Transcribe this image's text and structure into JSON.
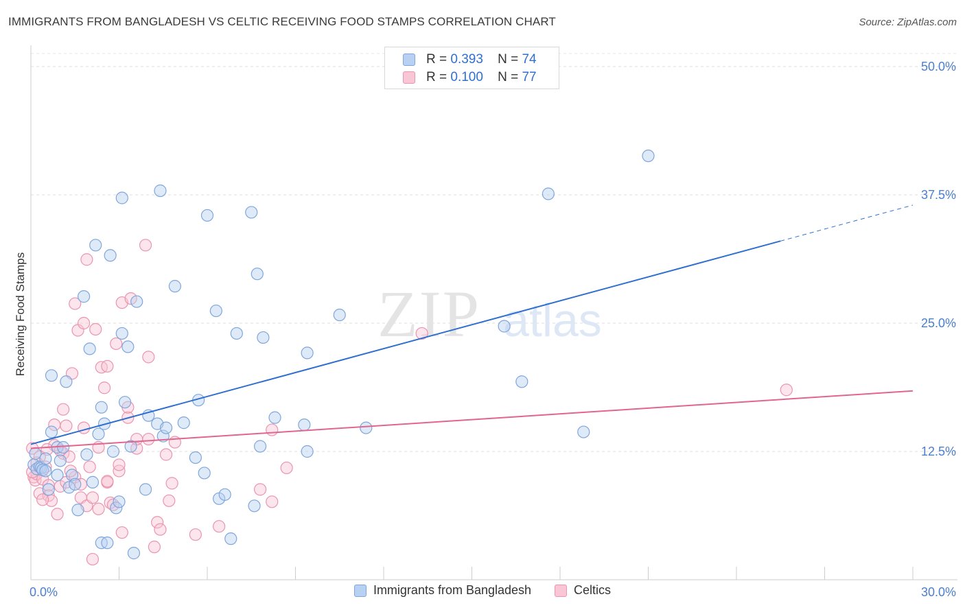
{
  "title": "IMMIGRANTS FROM BANGLADESH VS CELTIC RECEIVING FOOD STAMPS CORRELATION CHART",
  "source": "Source: ZipAtlas.com",
  "watermark": {
    "zip": "ZIP",
    "atlas": "atlas"
  },
  "stats_legend": [
    {
      "r_label": "R =",
      "r_value": "0.393",
      "n_label": "N =",
      "n_value": "74",
      "color": "#7ea6dc"
    },
    {
      "r_label": "R =",
      "r_value": "0.100",
      "n_label": "N =",
      "n_value": "77",
      "color": "#eb94ae"
    }
  ],
  "legend": [
    {
      "label": "Immigrants from Bangladesh",
      "color": "#7ea6dc"
    },
    {
      "label": "Celtics",
      "color": "#eb94ae"
    }
  ],
  "chart_data": {
    "type": "scatter",
    "title": "IMMIGRANTS FROM BANGLADESH VS CELTIC RECEIVING FOOD STAMPS CORRELATION CHART",
    "xlabel": "",
    "ylabel": "Receiving Food Stamps",
    "xlim": [
      0,
      30
    ],
    "ylim": [
      0,
      50
    ],
    "x_tick_labels": [
      "0.0%",
      "30.0%"
    ],
    "y_tick_labels": [
      "12.5%",
      "25.0%",
      "37.5%",
      "50.0%"
    ],
    "y_ticks": [
      12.5,
      25.0,
      37.5,
      50.0
    ],
    "grid": true,
    "legend_position": "bottom",
    "series": [
      {
        "name": "Immigrants from Bangladesh",
        "color": "#7ea6dc",
        "trend_color": "#2f6fd0",
        "trend": {
          "x0": 0,
          "y0": 13.2,
          "x1": 25.5,
          "y1": 33.0,
          "dashed_to_x": 30,
          "dashed_to_y": 36.5
        },
        "points": [
          [
            0.1,
            11.2
          ],
          [
            0.2,
            10.8
          ],
          [
            0.3,
            11.0
          ],
          [
            0.35,
            10.9
          ],
          [
            0.4,
            10.7
          ],
          [
            0.5,
            11.8
          ],
          [
            0.5,
            10.6
          ],
          [
            0.6,
            8.8
          ],
          [
            0.7,
            14.4
          ],
          [
            0.7,
            19.9
          ],
          [
            0.9,
            10.2
          ],
          [
            0.9,
            12.9
          ],
          [
            1.0,
            11.6
          ],
          [
            1.1,
            12.9
          ],
          [
            1.2,
            19.3
          ],
          [
            1.3,
            9.0
          ],
          [
            1.4,
            10.2
          ],
          [
            1.5,
            9.3
          ],
          [
            1.6,
            6.8
          ],
          [
            1.8,
            27.6
          ],
          [
            1.9,
            12.2
          ],
          [
            2.0,
            22.5
          ],
          [
            2.1,
            9.5
          ],
          [
            2.2,
            32.6
          ],
          [
            2.3,
            14.2
          ],
          [
            2.4,
            16.8
          ],
          [
            2.4,
            3.6
          ],
          [
            2.5,
            15.2
          ],
          [
            2.6,
            3.6
          ],
          [
            2.7,
            31.6
          ],
          [
            2.8,
            12.5
          ],
          [
            2.9,
            7.0
          ],
          [
            3.0,
            7.6
          ],
          [
            3.1,
            37.2
          ],
          [
            3.1,
            24.0
          ],
          [
            3.2,
            17.3
          ],
          [
            3.3,
            22.7
          ],
          [
            3.4,
            13.0
          ],
          [
            3.5,
            2.6
          ],
          [
            3.6,
            27.1
          ],
          [
            3.9,
            8.8
          ],
          [
            4.0,
            16.0
          ],
          [
            4.3,
            15.2
          ],
          [
            4.4,
            37.9
          ],
          [
            4.5,
            14.0
          ],
          [
            4.6,
            14.8
          ],
          [
            4.9,
            28.6
          ],
          [
            5.2,
            15.3
          ],
          [
            5.6,
            11.9
          ],
          [
            5.7,
            17.5
          ],
          [
            5.9,
            10.4
          ],
          [
            6.0,
            35.5
          ],
          [
            6.3,
            26.2
          ],
          [
            6.4,
            7.9
          ],
          [
            6.6,
            8.3
          ],
          [
            6.8,
            4.0
          ],
          [
            7.0,
            24.0
          ],
          [
            7.5,
            35.8
          ],
          [
            7.6,
            7.2
          ],
          [
            7.7,
            29.8
          ],
          [
            7.8,
            13.0
          ],
          [
            7.9,
            23.6
          ],
          [
            8.3,
            15.8
          ],
          [
            9.3,
            15.1
          ],
          [
            9.4,
            22.1
          ],
          [
            9.4,
            12.5
          ],
          [
            10.5,
            25.8
          ],
          [
            11.4,
            14.8
          ],
          [
            16.1,
            24.7
          ],
          [
            16.7,
            19.3
          ],
          [
            17.6,
            37.6
          ],
          [
            18.8,
            14.4
          ],
          [
            21.0,
            41.3
          ],
          [
            0.15,
            12.3
          ]
        ]
      },
      {
        "name": "Celtics",
        "color": "#eb94ae",
        "trend_color": "#e0668e",
        "trend": {
          "x0": 0,
          "y0": 12.8,
          "x1": 30,
          "y1": 18.4
        },
        "points": [
          [
            0.05,
            12.8
          ],
          [
            0.1,
            10.0
          ],
          [
            0.15,
            9.7
          ],
          [
            0.2,
            10.3
          ],
          [
            0.3,
            12.0
          ],
          [
            0.3,
            8.4
          ],
          [
            0.4,
            9.8
          ],
          [
            0.5,
            11.0
          ],
          [
            0.6,
            9.2
          ],
          [
            0.6,
            8.2
          ],
          [
            0.7,
            7.7
          ],
          [
            0.8,
            13.1
          ],
          [
            0.8,
            15.1
          ],
          [
            0.9,
            6.4
          ],
          [
            1.0,
            9.1
          ],
          [
            1.1,
            16.6
          ],
          [
            1.1,
            12.3
          ],
          [
            1.2,
            15.0
          ],
          [
            1.2,
            9.5
          ],
          [
            1.3,
            12.0
          ],
          [
            1.4,
            20.1
          ],
          [
            1.5,
            10.0
          ],
          [
            1.5,
            26.9
          ],
          [
            1.6,
            24.3
          ],
          [
            1.7,
            9.3
          ],
          [
            1.7,
            8.0
          ],
          [
            1.8,
            14.8
          ],
          [
            1.8,
            25.0
          ],
          [
            1.9,
            31.2
          ],
          [
            1.9,
            7.2
          ],
          [
            2.0,
            11.0
          ],
          [
            2.1,
            8.0
          ],
          [
            2.1,
            2.0
          ],
          [
            2.2,
            24.4
          ],
          [
            2.3,
            6.9
          ],
          [
            2.3,
            12.9
          ],
          [
            2.4,
            20.7
          ],
          [
            2.5,
            18.7
          ],
          [
            2.6,
            20.8
          ],
          [
            2.6,
            9.5
          ],
          [
            2.7,
            7.5
          ],
          [
            2.8,
            7.3
          ],
          [
            2.9,
            23.0
          ],
          [
            3.0,
            10.6
          ],
          [
            3.0,
            11.2
          ],
          [
            3.1,
            4.6
          ],
          [
            3.1,
            27.0
          ],
          [
            3.3,
            15.8
          ],
          [
            3.3,
            16.8
          ],
          [
            3.4,
            27.4
          ],
          [
            3.6,
            12.8
          ],
          [
            3.9,
            32.6
          ],
          [
            4.0,
            13.7
          ],
          [
            4.0,
            21.7
          ],
          [
            4.2,
            3.2
          ],
          [
            4.3,
            5.6
          ],
          [
            4.4,
            4.9
          ],
          [
            4.6,
            12.2
          ],
          [
            4.7,
            7.7
          ],
          [
            4.8,
            9.4
          ],
          [
            4.9,
            13.4
          ],
          [
            5.6,
            4.4
          ],
          [
            6.4,
            5.2
          ],
          [
            7.8,
            8.8
          ],
          [
            8.2,
            14.6
          ],
          [
            8.2,
            7.6
          ],
          [
            8.7,
            10.9
          ],
          [
            13.3,
            24.0
          ],
          [
            25.7,
            18.5
          ],
          [
            0.05,
            10.5
          ],
          [
            0.2,
            11.4
          ],
          [
            1.0,
            12.6
          ],
          [
            2.6,
            9.6
          ],
          [
            3.6,
            13.7
          ],
          [
            0.4,
            7.8
          ],
          [
            1.35,
            10.6
          ],
          [
            0.55,
            12.7
          ]
        ]
      }
    ]
  }
}
